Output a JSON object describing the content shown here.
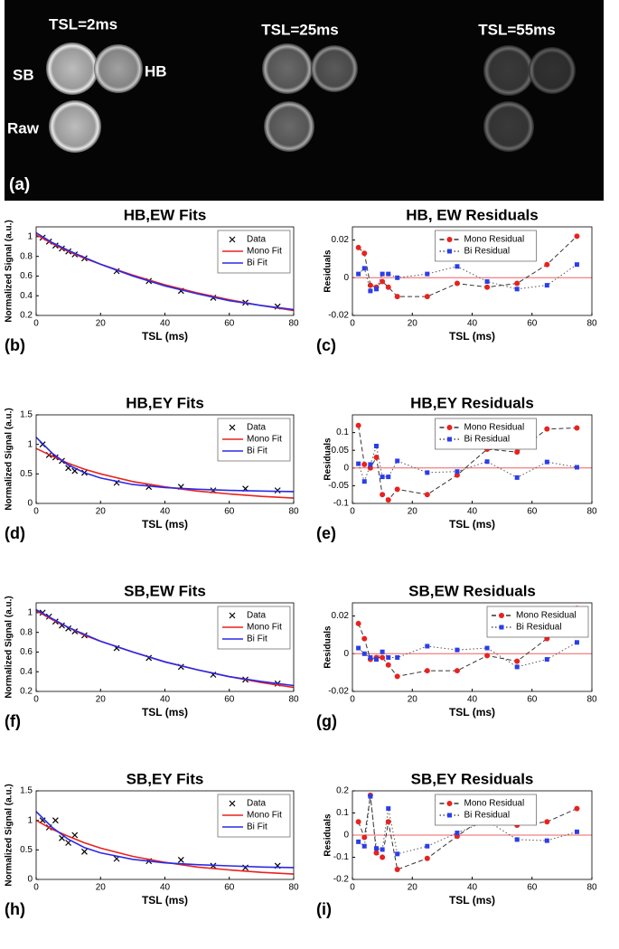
{
  "figure": {
    "panel": "(a)",
    "columns": [
      "TSL=2ms",
      "TSL=25ms",
      "TSL=55ms"
    ],
    "labels": [
      "SB",
      "HB",
      "Raw"
    ]
  },
  "chart_data": [
    {
      "type": "line",
      "panel": "(b)",
      "title": "HB,EW Fits",
      "xlabel": "TSL (ms)",
      "ylabel": "Normalized Signal (a.u.)",
      "x": [
        0,
        5,
        10,
        15,
        20,
        30,
        40,
        50,
        60,
        70,
        80
      ],
      "series": [
        {
          "name": "Data",
          "color": "#000000",
          "marker": "x",
          "x": [
            2,
            4,
            6,
            8,
            10,
            12,
            15,
            25,
            35,
            45,
            55,
            65,
            75
          ],
          "values": [
            0.99,
            0.95,
            0.91,
            0.88,
            0.85,
            0.82,
            0.78,
            0.65,
            0.55,
            0.45,
            0.38,
            0.33,
            0.29
          ]
        },
        {
          "name": "Mono Fit",
          "color": "#e8221f",
          "line_style": "solid",
          "values": [
            1.02,
            0.93,
            0.85,
            0.78,
            0.72,
            0.61,
            0.51,
            0.43,
            0.36,
            0.3,
            0.25
          ]
        },
        {
          "name": "Bi Fit",
          "color": "#2a2ae8",
          "line_style": "solid",
          "values": [
            1.04,
            0.94,
            0.86,
            0.79,
            0.72,
            0.6,
            0.5,
            0.42,
            0.35,
            0.3,
            0.26
          ]
        }
      ],
      "xlim": [
        0,
        80
      ],
      "xticks": [
        0,
        20,
        40,
        60,
        80
      ],
      "ylim": [
        0.2,
        1.1
      ],
      "yticks": [
        0.2,
        0.4,
        0.6,
        0.8,
        1
      ],
      "legend": "upper right"
    },
    {
      "type": "line",
      "panel": "(c)",
      "title": "HB, EW Residuals",
      "xlabel": "TSL (ms)",
      "ylabel": "Residuals",
      "x": [
        2,
        4,
        6,
        8,
        10,
        12,
        15,
        25,
        35,
        45,
        55,
        65,
        75
      ],
      "hline": 0,
      "hline_color": "#f06060",
      "series": [
        {
          "name": "Mono Residual",
          "color": "#e8221f",
          "marker": "circle",
          "line_style": "dashed",
          "line_color": "#333333",
          "values": [
            0.016,
            0.013,
            -0.004,
            -0.005,
            -0.002,
            -0.005,
            -0.01,
            -0.01,
            -0.003,
            -0.005,
            -0.003,
            0.007,
            0.022
          ]
        },
        {
          "name": "Bi Residual",
          "color": "#2a3ee8",
          "marker": "square",
          "line_style": "dotted",
          "line_color": "#555555",
          "values": [
            0.002,
            0.005,
            -0.007,
            -0.006,
            0.002,
            0.002,
            0,
            0.002,
            0.006,
            -0.002,
            -0.006,
            -0.004,
            0.007
          ]
        }
      ],
      "xlim": [
        0,
        80
      ],
      "xticks": [
        0,
        20,
        40,
        60,
        80
      ],
      "ylim": [
        -0.02,
        0.027
      ],
      "yticks": [
        -0.02,
        0,
        0.02
      ],
      "legend": "upper center"
    },
    {
      "type": "line",
      "panel": "(d)",
      "title": "HB,EY Fits",
      "xlabel": "TSL (ms)",
      "ylabel": "Normalized Signal (a.u.)",
      "x": [
        0,
        5,
        10,
        15,
        20,
        30,
        40,
        50,
        60,
        70,
        80
      ],
      "series": [
        {
          "name": "Data",
          "color": "#000000",
          "marker": "x",
          "x": [
            2,
            4,
            6,
            8,
            10,
            12,
            15,
            25,
            35,
            45,
            55,
            65,
            75
          ],
          "values": [
            1.0,
            0.82,
            0.78,
            0.72,
            0.6,
            0.55,
            0.52,
            0.35,
            0.28,
            0.28,
            0.22,
            0.25,
            0.22
          ]
        },
        {
          "name": "Mono Fit",
          "color": "#e8221f",
          "line_style": "solid",
          "values": [
            0.93,
            0.8,
            0.68,
            0.58,
            0.5,
            0.37,
            0.28,
            0.21,
            0.16,
            0.12,
            0.09
          ]
        },
        {
          "name": "Bi Fit",
          "color": "#2a2ae8",
          "line_style": "solid",
          "values": [
            1.12,
            0.85,
            0.65,
            0.52,
            0.43,
            0.32,
            0.27,
            0.24,
            0.22,
            0.21,
            0.2
          ]
        }
      ],
      "xlim": [
        0,
        80
      ],
      "xticks": [
        0,
        20,
        40,
        60,
        80
      ],
      "ylim": [
        0,
        1.5
      ],
      "yticks": [
        0,
        0.5,
        1,
        1.5
      ],
      "legend": "upper right"
    },
    {
      "type": "line",
      "panel": "(e)",
      "title": "HB,EY Residuals",
      "xlabel": "TSL (ms)",
      "ylabel": "Residuals",
      "x": [
        2,
        4,
        6,
        8,
        10,
        12,
        15,
        25,
        35,
        45,
        55,
        65,
        75
      ],
      "hline": 0,
      "hline_color": "#f06060",
      "series": [
        {
          "name": "Mono Residual",
          "color": "#e8221f",
          "marker": "circle",
          "line_style": "dashed",
          "line_color": "#333333",
          "values": [
            0.12,
            0.01,
            0,
            0.03,
            -0.075,
            -0.09,
            -0.06,
            -0.075,
            -0.02,
            0.053,
            0.045,
            0.11,
            0.113
          ]
        },
        {
          "name": "Bi Residual",
          "color": "#2a3ee8",
          "marker": "square",
          "line_style": "dotted",
          "line_color": "#555555",
          "values": [
            0.012,
            -0.038,
            0.01,
            0.062,
            -0.025,
            -0.025,
            0.02,
            -0.013,
            -0.01,
            0.018,
            -0.027,
            0.017,
            0.002
          ]
        }
      ],
      "xlim": [
        0,
        80
      ],
      "xticks": [
        0,
        20,
        40,
        60,
        80
      ],
      "ylim": [
        -0.1,
        0.15
      ],
      "yticks": [
        -0.1,
        -0.05,
        0,
        0.05,
        0.1
      ],
      "legend": "upper center"
    },
    {
      "type": "line",
      "panel": "(f)",
      "title": "SB,EW Fits",
      "xlabel": "TSL (ms)",
      "ylabel": "Normalized Signal (a.u.)",
      "x": [
        0,
        5,
        10,
        15,
        20,
        30,
        40,
        50,
        60,
        70,
        80
      ],
      "series": [
        {
          "name": "Data",
          "color": "#000000",
          "marker": "x",
          "x": [
            2,
            4,
            6,
            8,
            10,
            12,
            15,
            25,
            35,
            45,
            55,
            65,
            75
          ],
          "values": [
            1.0,
            0.96,
            0.91,
            0.87,
            0.84,
            0.81,
            0.77,
            0.64,
            0.54,
            0.45,
            0.37,
            0.32,
            0.28
          ]
        },
        {
          "name": "Mono Fit",
          "color": "#e8221f",
          "line_style": "solid",
          "values": [
            1.02,
            0.93,
            0.85,
            0.77,
            0.71,
            0.6,
            0.5,
            0.42,
            0.35,
            0.29,
            0.24
          ]
        },
        {
          "name": "Bi Fit",
          "color": "#2a2ae8",
          "line_style": "solid",
          "values": [
            1.03,
            0.94,
            0.85,
            0.78,
            0.71,
            0.6,
            0.5,
            0.42,
            0.35,
            0.3,
            0.26
          ]
        }
      ],
      "xlim": [
        0,
        80
      ],
      "xticks": [
        0,
        20,
        40,
        60,
        80
      ],
      "ylim": [
        0.2,
        1.1
      ],
      "yticks": [
        0.2,
        0.4,
        0.6,
        0.8,
        1
      ],
      "legend": "upper right"
    },
    {
      "type": "line",
      "panel": "(g)",
      "title": "SB,EW Residuals",
      "xlabel": "TSL (ms)",
      "ylabel": "Residuals",
      "x": [
        2,
        4,
        6,
        8,
        10,
        12,
        15,
        25,
        35,
        45,
        55,
        65,
        75
      ],
      "hline": 0,
      "hline_color": "#f06060",
      "series": [
        {
          "name": "Mono Residual",
          "color": "#e8221f",
          "marker": "circle",
          "line_style": "dashed",
          "line_color": "#333333",
          "values": [
            0.016,
            0.008,
            -0.003,
            -0.002,
            -0.002,
            -0.006,
            -0.012,
            -0.009,
            -0.009,
            -0.001,
            -0.004,
            0.008,
            0.024
          ]
        },
        {
          "name": "Bi Residual",
          "color": "#2a3ee8",
          "marker": "square",
          "line_style": "dotted",
          "line_color": "#555555",
          "values": [
            0.003,
            0,
            -0.002,
            -0.003,
            0.001,
            -0.002,
            -0.002,
            0.004,
            0.002,
            0.003,
            -0.007,
            -0.003,
            0.006
          ]
        }
      ],
      "xlim": [
        0,
        80
      ],
      "xticks": [
        0,
        20,
        40,
        60,
        80
      ],
      "ylim": [
        -0.02,
        0.027
      ],
      "yticks": [
        -0.02,
        0,
        0.02
      ],
      "legend": "upper right"
    },
    {
      "type": "line",
      "panel": "(h)",
      "title": "SB,EY Fits",
      "xlabel": "TSL (ms)",
      "ylabel": "Normalized Signal (a.u.)",
      "x": [
        0,
        5,
        10,
        15,
        20,
        30,
        40,
        50,
        60,
        70,
        80
      ],
      "series": [
        {
          "name": "Data",
          "color": "#000000",
          "marker": "x",
          "x": [
            2,
            4,
            6,
            8,
            10,
            12,
            15,
            25,
            35,
            45,
            55,
            65,
            75
          ],
          "values": [
            1.0,
            0.88,
            1.0,
            0.7,
            0.62,
            0.75,
            0.47,
            0.35,
            0.31,
            0.33,
            0.23,
            0.2,
            0.23
          ]
        },
        {
          "name": "Mono Fit",
          "color": "#e8221f",
          "line_style": "solid",
          "values": [
            1.0,
            0.85,
            0.73,
            0.62,
            0.53,
            0.39,
            0.29,
            0.21,
            0.16,
            0.12,
            0.09
          ]
        },
        {
          "name": "Bi Fit",
          "color": "#2a2ae8",
          "line_style": "solid",
          "values": [
            1.15,
            0.88,
            0.68,
            0.54,
            0.45,
            0.34,
            0.28,
            0.25,
            0.23,
            0.21,
            0.2
          ]
        }
      ],
      "xlim": [
        0,
        80
      ],
      "xticks": [
        0,
        20,
        40,
        60,
        80
      ],
      "ylim": [
        0,
        1.5
      ],
      "yticks": [
        0,
        0.5,
        1,
        1.5
      ],
      "legend": "upper right"
    },
    {
      "type": "line",
      "panel": "(i)",
      "title": "SB,EY Residuals",
      "xlabel": "TSL (ms)",
      "ylabel": "Residuals",
      "x": [
        2,
        4,
        6,
        8,
        10,
        12,
        15,
        25,
        35,
        45,
        55,
        65,
        75
      ],
      "hline": 0,
      "hline_color": "#f06060",
      "series": [
        {
          "name": "Mono Residual",
          "color": "#e8221f",
          "marker": "circle",
          "line_style": "dashed",
          "line_color": "#333333",
          "values": [
            0.06,
            -0.01,
            0.18,
            -0.08,
            -0.1,
            0.06,
            -0.155,
            -0.105,
            -0.005,
            0.09,
            0.045,
            0.06,
            0.12
          ]
        },
        {
          "name": "Bi Residual",
          "color": "#2a3ee8",
          "marker": "square",
          "line_style": "dotted",
          "line_color": "#555555",
          "values": [
            -0.03,
            -0.05,
            0.175,
            -0.06,
            -0.065,
            0.12,
            -0.085,
            -0.05,
            0.01,
            0.065,
            -0.02,
            -0.025,
            0.015
          ]
        }
      ],
      "xlim": [
        0,
        80
      ],
      "xticks": [
        0,
        20,
        40,
        60,
        80
      ],
      "ylim": [
        -0.2,
        0.2
      ],
      "yticks": [
        -0.2,
        -0.1,
        0,
        0.1,
        0.2
      ],
      "legend": "upper center"
    }
  ]
}
